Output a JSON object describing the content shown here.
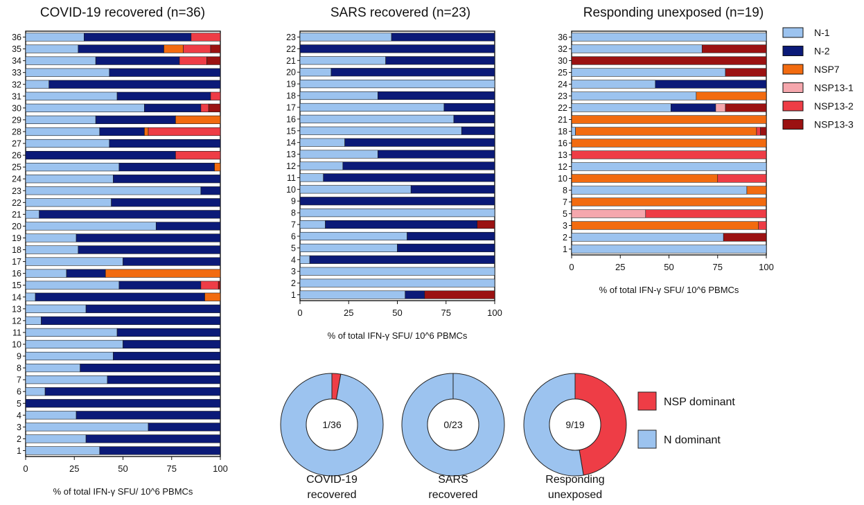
{
  "colors": {
    "N-1": "#9cc3ef",
    "N-2": "#0b1a78",
    "NSP7": "#f26b10",
    "NSP13-1": "#f5a7ad",
    "NSP13-2": "#ee3d46",
    "NSP13-3": "#9b1212",
    "NSP dominant": "#ee3d46",
    "N dominant": "#9cc3ef"
  },
  "chart_data": [
    {
      "type": "bar",
      "orientation": "horizontal",
      "stacked": true,
      "title": "COVID-19 recovered (n=36)",
      "xlabel": "% of total IFN-γ SFU/ 10^6 PBMCs",
      "xlim": [
        0,
        100
      ],
      "xticks": [
        "0",
        "25",
        "50",
        "75",
        "100"
      ],
      "categories": [
        "36",
        "35",
        "34",
        "33",
        "32",
        "31",
        "30",
        "29",
        "28",
        "27",
        "26",
        "25",
        "24",
        "23",
        "22",
        "21",
        "20",
        "19",
        "18",
        "17",
        "16",
        "15",
        "14",
        "13",
        "12",
        "11",
        "10",
        "9",
        "8",
        "7",
        "6",
        "5",
        "4",
        "3",
        "2",
        "1"
      ],
      "series": [
        {
          "name": "N-1",
          "values": [
            30,
            27,
            36,
            43,
            12,
            47,
            61,
            36,
            38,
            43,
            0,
            48,
            45,
            90,
            44,
            7,
            67,
            26,
            27,
            50,
            21,
            48,
            5,
            31,
            8,
            47,
            50,
            45,
            28,
            42,
            10,
            0,
            26,
            63,
            31,
            38
          ]
        },
        {
          "name": "N-2",
          "values": [
            55,
            44,
            43,
            57,
            88,
            48,
            29,
            41,
            23,
            57,
            77,
            49,
            55,
            10,
            56,
            93,
            33,
            74,
            73,
            50,
            20,
            42,
            87,
            69,
            92,
            53,
            50,
            55,
            72,
            58,
            90,
            100,
            74,
            37,
            69,
            62
          ]
        },
        {
          "name": "NSP7",
          "values": [
            0,
            10,
            0,
            0,
            0,
            0,
            0,
            23,
            2,
            0,
            0,
            3,
            0,
            0,
            0,
            0,
            0,
            0,
            0,
            0,
            59,
            0,
            8,
            0,
            0,
            0,
            0,
            0,
            0,
            0,
            0,
            0,
            0,
            0,
            0,
            0
          ]
        },
        {
          "name": "NSP13-1",
          "values": [
            0,
            0,
            0,
            0,
            0,
            0,
            0,
            0,
            0,
            0,
            0,
            0,
            0,
            0,
            0,
            0,
            0,
            0,
            0,
            0,
            0,
            0,
            0,
            0,
            0,
            0,
            0,
            0,
            0,
            0,
            0,
            0,
            0,
            0,
            0,
            0
          ]
        },
        {
          "name": "NSP13-2",
          "values": [
            15,
            14,
            14,
            0,
            0,
            5,
            4,
            0,
            37,
            0,
            23,
            0,
            0,
            0,
            0,
            0,
            0,
            0,
            0,
            0,
            0,
            9,
            0,
            0,
            0,
            0,
            0,
            0,
            0,
            0,
            0,
            0,
            0,
            0,
            0,
            0
          ]
        },
        {
          "name": "NSP13-3",
          "values": [
            0,
            5,
            7,
            0,
            0,
            0,
            6,
            0,
            0,
            0,
            0,
            0,
            0,
            0,
            0,
            0,
            0,
            0,
            0,
            0,
            0,
            1,
            0,
            0,
            0,
            0,
            0,
            0,
            0,
            0,
            0,
            0,
            0,
            0,
            0,
            0
          ]
        }
      ]
    },
    {
      "type": "bar",
      "orientation": "horizontal",
      "stacked": true,
      "title": "SARS recovered (n=23)",
      "xlabel": "% of total IFN-γ SFU/ 10^6 PBMCs",
      "xlim": [
        0,
        100
      ],
      "xticks": [
        "0",
        "25",
        "50",
        "75",
        "100"
      ],
      "categories": [
        "23",
        "22",
        "21",
        "20",
        "19",
        "18",
        "17",
        "16",
        "15",
        "14",
        "13",
        "12",
        "11",
        "10",
        "9",
        "8",
        "7",
        "6",
        "5",
        "4",
        "3",
        "2",
        "1"
      ],
      "series": [
        {
          "name": "N-1",
          "values": [
            47,
            0,
            44,
            16,
            100,
            40,
            74,
            79,
            83,
            23,
            40,
            22,
            12,
            57,
            0,
            100,
            13,
            55,
            50,
            5,
            100,
            100,
            54
          ]
        },
        {
          "name": "N-2",
          "values": [
            53,
            100,
            56,
            84,
            0,
            60,
            26,
            21,
            17,
            77,
            60,
            78,
            88,
            43,
            100,
            0,
            78,
            45,
            50,
            95,
            0,
            0,
            10
          ]
        },
        {
          "name": "NSP7",
          "values": [
            0,
            0,
            0,
            0,
            0,
            0,
            0,
            0,
            0,
            0,
            0,
            0,
            0,
            0,
            0,
            0,
            0,
            0,
            0,
            0,
            0,
            0,
            0
          ]
        },
        {
          "name": "NSP13-1",
          "values": [
            0,
            0,
            0,
            0,
            0,
            0,
            0,
            0,
            0,
            0,
            0,
            0,
            0,
            0,
            0,
            0,
            0,
            0,
            0,
            0,
            0,
            0,
            0
          ]
        },
        {
          "name": "NSP13-2",
          "values": [
            0,
            0,
            0,
            0,
            0,
            0,
            0,
            0,
            0,
            0,
            0,
            0,
            0,
            0,
            0,
            0,
            0,
            0,
            0,
            0,
            0,
            0,
            0
          ]
        },
        {
          "name": "NSP13-3",
          "values": [
            0,
            0,
            0,
            0,
            0,
            0,
            0,
            0,
            0,
            0,
            0,
            0,
            0,
            0,
            0,
            0,
            9,
            0,
            0,
            0,
            0,
            0,
            36
          ]
        }
      ]
    },
    {
      "type": "bar",
      "orientation": "horizontal",
      "stacked": true,
      "title": "Responding unexposed (n=19)",
      "xlabel": "% of total IFN-γ SFU/ 10^6 PBMCs",
      "xlim": [
        0,
        100
      ],
      "xticks": [
        "0",
        "25",
        "50",
        "75",
        "100"
      ],
      "categories": [
        "36",
        "32",
        "30",
        "25",
        "24",
        "23",
        "22",
        "21",
        "18",
        "16",
        "13",
        "12",
        "10",
        "8",
        "7",
        "5",
        "3",
        "2",
        "1"
      ],
      "series": [
        {
          "name": "N-1",
          "values": [
            100,
            67,
            0,
            79,
            43,
            64,
            51,
            0,
            2,
            0,
            0,
            100,
            0,
            90,
            0,
            0,
            0,
            78,
            100
          ]
        },
        {
          "name": "N-2",
          "values": [
            0,
            0,
            0,
            0,
            57,
            0,
            23,
            0,
            0,
            0,
            0,
            0,
            0,
            0,
            0,
            0,
            0,
            0,
            0
          ]
        },
        {
          "name": "NSP7",
          "values": [
            0,
            0,
            0,
            0,
            0,
            36,
            0,
            100,
            93,
            100,
            0,
            0,
            75,
            10,
            100,
            0,
            96,
            0,
            0
          ]
        },
        {
          "name": "NSP13-1",
          "values": [
            0,
            0,
            0,
            0,
            0,
            0,
            5,
            0,
            0,
            0,
            0,
            0,
            0,
            0,
            0,
            38,
            0,
            0,
            0
          ]
        },
        {
          "name": "NSP13-2",
          "values": [
            0,
            0,
            0,
            0,
            0,
            0,
            0,
            0,
            2,
            0,
            100,
            0,
            25,
            0,
            0,
            62,
            4,
            0,
            0
          ]
        },
        {
          "name": "NSP13-3",
          "values": [
            0,
            33,
            100,
            21,
            0,
            0,
            21,
            0,
            3,
            0,
            0,
            0,
            0,
            0,
            0,
            0,
            0,
            22,
            0
          ]
        }
      ]
    },
    {
      "type": "pie",
      "donut": true,
      "center_label": "1/36",
      "caption": [
        "COVID-19",
        "recovered"
      ],
      "categories": [
        "NSP dominant",
        "N dominant"
      ],
      "values": [
        1,
        35
      ]
    },
    {
      "type": "pie",
      "donut": true,
      "center_label": "0/23",
      "caption": [
        "SARS",
        "recovered"
      ],
      "categories": [
        "NSP dominant",
        "N dominant"
      ],
      "values": [
        0,
        23
      ]
    },
    {
      "type": "pie",
      "donut": true,
      "center_label": "9/19",
      "caption": [
        "Responding",
        "unexposed"
      ],
      "categories": [
        "NSP dominant",
        "N dominant"
      ],
      "values": [
        9,
        10
      ]
    }
  ],
  "legend_bars": [
    "N-1",
    "N-2",
    "NSP7",
    "NSP13-1",
    "NSP13-2",
    "NSP13-3"
  ],
  "legend_donuts": [
    "NSP dominant",
    "N dominant"
  ]
}
